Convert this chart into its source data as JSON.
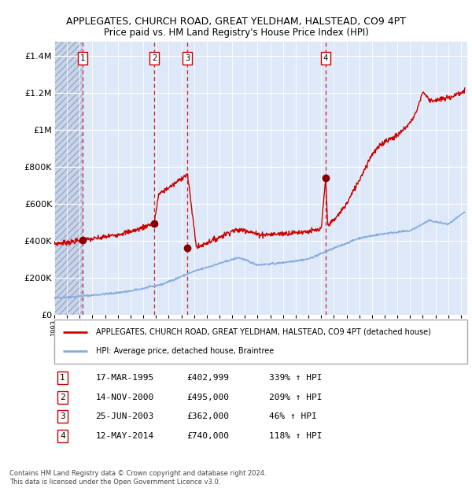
{
  "title1": "APPLEGATES, CHURCH ROAD, GREAT YELDHAM, HALSTEAD, CO9 4PT",
  "title2": "Price paid vs. HM Land Registry's House Price Index (HPI)",
  "ylabel_ticks": [
    "£0",
    "£200K",
    "£400K",
    "£600K",
    "£800K",
    "£1M",
    "£1.2M",
    "£1.4M"
  ],
  "ytick_vals": [
    0,
    200000,
    400000,
    600000,
    800000,
    1000000,
    1200000,
    1400000
  ],
  "ylim": [
    0,
    1480000
  ],
  "xlim_start": 1993.0,
  "xlim_end": 2025.5,
  "sale_dates": [
    1995.21,
    2000.87,
    2003.48,
    2014.36
  ],
  "sale_prices": [
    402999,
    495000,
    362000,
    740000
  ],
  "sale_labels": [
    "1",
    "2",
    "3",
    "4"
  ],
  "dashed_line_color": "#cc0000",
  "sale_point_color": "#880000",
  "hpi_line_color": "#88aadd",
  "price_line_color": "#cc0000",
  "background_color": "#dde8f8",
  "grid_color": "#ffffff",
  "legend_label_red": "APPLEGATES, CHURCH ROAD, GREAT YELDHAM, HALSTEAD, CO9 4PT (detached house)",
  "legend_label_blue": "HPI: Average price, detached house, Braintree",
  "table_data": [
    [
      "1",
      "17-MAR-1995",
      "£402,999",
      "339% ↑ HPI"
    ],
    [
      "2",
      "14-NOV-2000",
      "£495,000",
      "209% ↑ HPI"
    ],
    [
      "3",
      "25-JUN-2003",
      "£362,000",
      "46% ↑ HPI"
    ],
    [
      "4",
      "12-MAY-2014",
      "£740,000",
      "118% ↑ HPI"
    ]
  ],
  "footer": "Contains HM Land Registry data © Crown copyright and database right 2024.\nThis data is licensed under the Open Government Licence v3.0."
}
